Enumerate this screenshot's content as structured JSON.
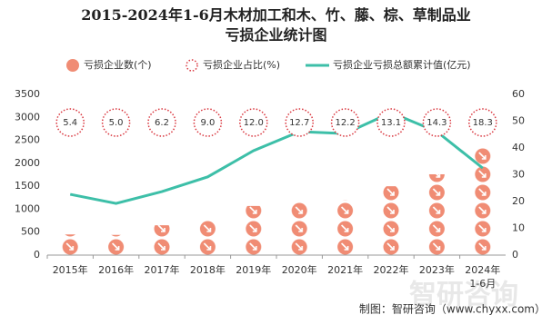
{
  "chart_data": {
    "type": "pictorial-bar-line",
    "title": "2015-2024年1-6月木材加工和木、竹、藤、棕、草制品业\n亏损企业统计图",
    "categories": [
      "2015年",
      "2016年",
      "2017年",
      "2018年",
      "2019年",
      "2020年",
      "2021年",
      "2022年",
      "2023年",
      "2024年\n1-6月"
    ],
    "series": [
      {
        "name": "亏损企业数(个)",
        "color": "#f08c74",
        "values": [
          450,
          440,
          650,
          790,
          1070,
          1150,
          1200,
          1500,
          1760,
          2330
        ]
      },
      {
        "name": "亏损企业占比(%)",
        "color": "#d9363e",
        "values": [
          5.4,
          5.0,
          6.2,
          9.0,
          12.0,
          12.7,
          12.2,
          13.1,
          14.3,
          18.3
        ],
        "value_labels": [
          "5.4",
          "5.0",
          "6.2",
          "9.0",
          "12.0",
          "12.7",
          "12.2",
          "13.1",
          "14.3",
          "18.3"
        ]
      },
      {
        "name": "亏损企业亏损总额累计值(亿元)",
        "color": "#3dbfa8",
        "axis": "y2",
        "values": [
          22.7,
          19.3,
          23.7,
          29.2,
          39.0,
          46.1,
          45.4,
          53.2,
          46.1,
          32.5
        ]
      }
    ],
    "ylim": [
      0,
      3500
    ],
    "yticks": [
      0,
      500,
      1000,
      1500,
      2000,
      2500,
      3000,
      3500
    ],
    "y2lim": [
      0,
      60
    ],
    "y2ticks": [
      0,
      10,
      20,
      30,
      40,
      50,
      60
    ],
    "source": "制图：智研咨询（www.chyxx.com）",
    "watermark": "智研咨询"
  }
}
